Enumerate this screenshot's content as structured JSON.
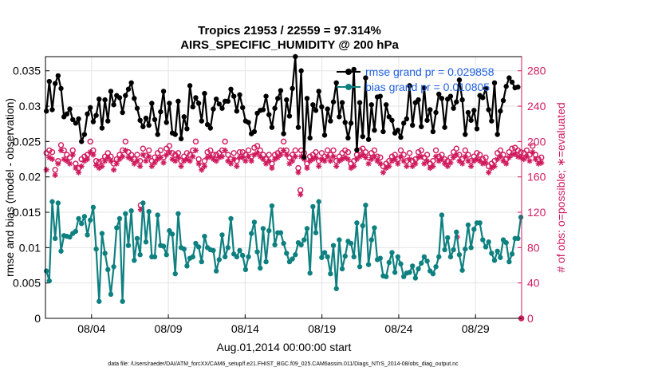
{
  "chart_data": {
    "type": "line",
    "title": "Tropics 21953 / 22559 = 97.314%",
    "subtitle": "AIRS_SPECIFIC_HUMIDITY @ 200 hPa",
    "xlabel": "Aug.01,2014 00:00:00 start",
    "ylabel_left": "rmse and bias (model - observation)",
    "ylabel_right": "# of obs: o=possible; ∗=evaluated",
    "footer": "data file: /Users/raeder/DAI/ATM_forcXX/CAM6_setup/f.e21.FHIST_BGC.f09_025.CAM6assim.011/Diags_NTrS_2014-08/obs_diag_output.nc",
    "x_range_days": [
      1,
      32
    ],
    "x_ticks": [
      4,
      9,
      14,
      19,
      24,
      29
    ],
    "x_tick_labels": [
      "08/04",
      "08/09",
      "08/14",
      "08/19",
      "08/24",
      "08/29"
    ],
    "y_left_range": [
      0,
      0.037
    ],
    "y_left_ticks": [
      "0",
      "0.005",
      "0.01",
      "0.015",
      "0.02",
      "0.025",
      "0.03",
      "0.035"
    ],
    "y_right_range": [
      0,
      296
    ],
    "y_right_ticks": [
      "0",
      "40",
      "80",
      "120",
      "160",
      "200",
      "240",
      "280"
    ],
    "grid": true,
    "legend_position": "top-right",
    "colors": {
      "rmse": "#000000",
      "bias": "#0f8080",
      "obs": "#d01b5e"
    },
    "series": [
      {
        "name": "rmse grand pr = 0.029858",
        "axis": "left",
        "values": [
          0.0293,
          0.0335,
          0.0295,
          0.0332,
          0.0343,
          0.0325,
          0.0285,
          0.0289,
          0.0296,
          0.0281,
          0.0276,
          0.0282,
          0.025,
          0.026,
          0.0289,
          0.0298,
          0.0278,
          0.0287,
          0.031,
          0.0269,
          0.0309,
          0.0279,
          0.0321,
          0.0302,
          0.0315,
          0.0312,
          0.0291,
          0.0315,
          0.0324,
          0.0333,
          0.0311,
          0.0297,
          0.028,
          0.0271,
          0.0283,
          0.0273,
          0.0304,
          0.0281,
          0.026,
          0.0292,
          0.0321,
          0.0277,
          0.0304,
          0.0262,
          0.026,
          0.0307,
          0.0254,
          0.0285,
          0.0268,
          0.0329,
          0.0299,
          0.0312,
          0.0304,
          0.0279,
          0.0318,
          0.0274,
          0.0269,
          0.0296,
          0.031,
          0.0303,
          0.0297,
          0.0307,
          0.0307,
          0.0324,
          0.0314,
          0.0293,
          0.0316,
          0.0298,
          0.0279,
          0.0277,
          0.0261,
          0.0264,
          0.029,
          0.0294,
          0.0295,
          0.0314,
          0.0288,
          0.027,
          0.0297,
          0.0311,
          0.0322,
          0.0261,
          0.0309,
          0.0286,
          0.0325,
          0.037,
          0.027,
          0.035,
          0.0228,
          0.0311,
          0.0255,
          0.0302,
          0.0294,
          0.0321,
          0.0299,
          0.0259,
          0.0296,
          0.0279,
          0.0306,
          0.0333,
          0.0285,
          0.0305,
          0.0277,
          0.0255,
          0.0276,
          0.0352,
          0.0238,
          0.0305,
          0.0257,
          0.034,
          0.0253,
          0.0302,
          0.0266,
          0.0313,
          0.0314,
          0.0264,
          0.0302,
          0.0285,
          0.028,
          0.0262,
          0.0266,
          0.0256,
          0.0276,
          0.0282,
          0.0329,
          0.0273,
          0.0305,
          0.0309,
          0.0271,
          0.0326,
          0.028,
          0.0295,
          0.0264,
          0.0291,
          0.0317,
          0.0311,
          0.027,
          0.031,
          0.0314,
          0.0297,
          0.0306,
          0.0337,
          0.0309,
          0.026,
          0.0291,
          0.028,
          0.0294,
          0.0268,
          0.0315,
          0.0312,
          0.0325,
          0.0295,
          0.0279,
          0.0333,
          0.026,
          0.0293,
          0.0308,
          0.0328,
          0.034,
          0.0334,
          0.0326,
          0.0327
        ]
      },
      {
        "name": "bias grand pr = 0.010805",
        "axis": "left",
        "values": [
          0.0067,
          0.0053,
          0.0165,
          0.0113,
          0.0163,
          0.0095,
          0.0117,
          0.0116,
          0.0115,
          0.012,
          0.0123,
          0.0141,
          0.0134,
          0.0144,
          0.0118,
          0.0139,
          0.0157,
          0.0098,
          0.0024,
          0.012,
          0.0092,
          0.0069,
          0.0034,
          0.0073,
          0.0128,
          0.0141,
          0.0024,
          0.0148,
          0.0103,
          0.0152,
          0.0082,
          0.0113,
          0.009,
          0.0163,
          0.0108,
          0.0151,
          0.0087,
          0.0087,
          0.0146,
          0.0103,
          0.0102,
          0.009,
          0.0124,
          0.0119,
          0.0063,
          0.0148,
          0.01,
          0.0098,
          0.0074,
          0.0085,
          0.0087,
          0.0106,
          0.0101,
          0.008,
          0.0116,
          0.01,
          0.0097,
          0.0096,
          0.0067,
          0.0083,
          0.0118,
          0.0087,
          0.01,
          0.0141,
          0.0091,
          0.0087,
          0.0096,
          0.0089,
          0.0069,
          0.0087,
          0.012,
          0.0136,
          0.0094,
          0.0071,
          0.0127,
          0.008,
          0.0124,
          0.0159,
          0.0104,
          0.0121,
          0.0121,
          0.0106,
          0.0092,
          0.008,
          0.0084,
          0.009,
          0.0107,
          0.0104,
          0.0111,
          0.0127,
          0.0064,
          0.0158,
          0.0121,
          0.0165,
          0.0086,
          0.0093,
          0.0087,
          0.0063,
          0.0103,
          0.0042,
          0.0111,
          0.007,
          0.0088,
          0.0109,
          0.0106,
          0.0087,
          0.0135,
          0.0073,
          0.0131,
          0.016,
          0.0076,
          0.0111,
          0.0128,
          0.0083,
          0.0085,
          0.006,
          0.0059,
          0.0079,
          0.0093,
          0.0065,
          0.0087,
          0.0077,
          0.0059,
          0.0064,
          0.0065,
          0.0074,
          0.0057,
          0.007,
          0.0078,
          0.0087,
          0.0081,
          0.0067,
          0.0063,
          0.0073,
          0.0087,
          0.0146,
          0.0097,
          0.0114,
          0.0087,
          0.0097,
          0.0122,
          0.009,
          0.0068,
          0.0098,
          0.0132,
          0.01,
          0.0126,
          0.0135,
          0.0135,
          0.0111,
          0.0101,
          0.0108,
          0.0092,
          0.0082,
          0.0095,
          0.0086,
          0.0111,
          0.0107,
          0.008,
          0.0091,
          0.0113,
          0.0113,
          0.0143
        ]
      },
      {
        "name": "obs possible (o)",
        "axis": "right",
        "values": [
          187,
          190,
          188,
          168,
          178,
          196,
          190,
          185,
          182,
          190,
          175,
          170,
          180,
          183,
          185,
          200,
          190,
          178,
          177,
          178,
          183,
          187,
          183,
          175,
          180,
          185,
          190,
          200,
          188,
          185,
          180,
          185,
          178,
          192,
          184,
          190,
          178,
          182,
          187,
          190,
          182,
          192,
          195,
          187,
          185,
          187,
          178,
          183,
          187,
          185,
          190,
          200,
          180,
          172,
          178,
          188,
          190,
          185,
          185,
          187,
          190,
          200,
          185,
          180,
          187,
          178,
          188,
          188,
          185,
          190,
          183,
          193,
          195,
          190,
          185,
          180,
          185,
          175,
          185,
          187,
          190,
          200,
          190,
          182,
          185,
          190,
          170,
          190,
          187,
          175,
          183,
          185,
          188,
          178,
          187,
          183,
          190,
          185,
          190,
          178,
          183,
          187,
          190,
          188,
          175,
          178,
          185,
          190,
          192,
          188,
          182,
          187,
          190,
          183,
          182,
          172,
          175,
          178,
          183,
          185,
          180,
          190,
          185,
          178,
          187,
          178,
          180,
          188,
          190,
          182,
          185,
          175,
          178,
          190,
          183,
          185,
          180,
          178,
          182,
          188,
          192,
          185,
          180,
          190,
          185,
          178,
          183,
          187,
          185,
          180,
          182,
          172,
          175,
          178,
          187,
          190,
          185,
          180,
          188,
          192,
          193,
          190,
          188,
          187,
          190,
          185,
          195,
          185,
          180,
          182
        ]
      },
      {
        "name": "obs evaluated (*)",
        "axis": "right",
        "values": [
          168,
          182,
          180,
          162,
          175,
          190,
          180,
          178,
          175,
          185,
          170,
          165,
          172,
          178,
          180,
          188,
          185,
          173,
          170,
          172,
          178,
          182,
          178,
          168,
          175,
          180,
          183,
          190,
          182,
          180,
          175,
          178,
          172,
          185,
          178,
          183,
          172,
          176,
          180,
          182,
          176,
          185,
          188,
          180,
          178,
          182,
          172,
          178,
          180,
          178,
          183,
          190,
          175,
          168,
          172,
          182,
          183,
          180,
          178,
          182,
          183,
          190,
          178,
          175,
          180,
          172,
          182,
          182,
          178,
          183,
          178,
          185,
          187,
          183,
          180,
          175,
          178,
          170,
          180,
          182,
          185,
          190,
          185,
          175,
          178,
          183,
          165,
          183,
          180,
          170,
          178,
          180,
          182,
          172,
          180,
          178,
          183,
          178,
          183,
          172,
          178,
          180,
          182,
          180,
          170,
          172,
          180,
          183,
          185,
          182,
          175,
          180,
          183,
          178,
          175,
          165,
          170,
          172,
          178,
          180,
          175,
          183,
          178,
          172,
          180,
          172,
          175,
          182,
          183,
          175,
          178,
          170,
          172,
          183,
          178,
          180,
          175,
          172,
          176,
          182,
          185,
          178,
          175,
          183,
          178,
          172,
          178,
          180,
          178,
          175,
          176,
          165,
          170,
          172,
          180,
          183,
          178,
          175,
          182,
          185,
          186,
          183,
          182,
          180,
          183,
          178,
          188,
          180,
          175,
          176
        ]
      }
    ],
    "outliers": [
      {
        "name": "obs possible (o)",
        "x_day": 7.2,
        "value": 128
      },
      {
        "name": "obs evaluated (*)",
        "x_day": 7.2,
        "value": 123
      },
      {
        "name": "obs possible (o)",
        "x_day": 17.6,
        "value": 145
      },
      {
        "name": "obs evaluated (*)",
        "x_day": 17.6,
        "value": 140
      },
      {
        "name": "obs evaluated (*)",
        "x_day": 27.8,
        "value": 92
      },
      {
        "name": "obs possible (o)",
        "x_day": 31.98,
        "value": 0
      },
      {
        "name": "obs evaluated (*)",
        "x_day": 31.98,
        "value": 0
      }
    ]
  }
}
